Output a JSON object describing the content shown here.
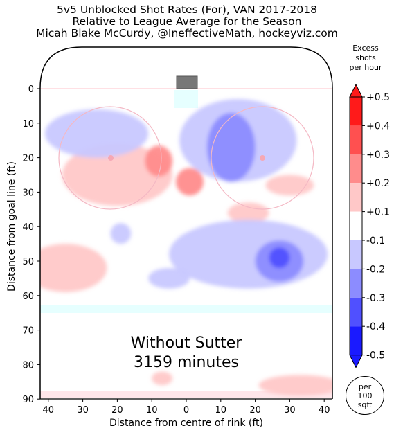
{
  "title": {
    "line1": "5v5 Unblocked Shot Rates (For), VAN 2017-2018",
    "line2": "Relative to League Average for the Season",
    "line3": "Micah Blake McCurdy, @IneffectiveMath, hockeyviz.com"
  },
  "annotation": {
    "line1": "Without Sutter",
    "line2": "3159 minutes"
  },
  "colorbar": {
    "label_line1": "Excess",
    "label_line2": "shots",
    "label_line3": "per hour",
    "ticks": [
      "+0.5",
      "+0.4",
      "+0.3",
      "+0.2",
      "+0.1",
      "-0.1",
      "-0.2",
      "-0.3",
      "-0.4",
      "-0.5"
    ],
    "colors": [
      "#ff1a1a",
      "#ff5050",
      "#ff8c8c",
      "#ffc8c8",
      "#ffffff",
      "#c8c8ff",
      "#8c8cff",
      "#5050ff",
      "#1a1aff"
    ]
  },
  "badge": {
    "line1": "per",
    "line2": "100",
    "line3": "sqft"
  },
  "chart_data": {
    "type": "heatmap",
    "title": "5v5 Unblocked Shot Rates (For), VAN 2017-2018",
    "subtitle": "Relative to League Average for the Season",
    "xlabel": "Distance from centre of rink (ft)",
    "ylabel": "Distance from goal line (ft)",
    "x_ticks": [
      40,
      30,
      20,
      10,
      0,
      10,
      20,
      30,
      40
    ],
    "y_ticks": [
      0,
      10,
      20,
      30,
      40,
      50,
      60,
      70,
      80,
      90
    ],
    "xlim": [
      -42.5,
      42.5
    ],
    "ylim": [
      0,
      90
    ],
    "colorbar_range": [
      -0.5,
      0.5
    ],
    "colorbar_unit": "Excess shots per hour",
    "regions": [
      {
        "x": -20,
        "y": 25,
        "rx": 16,
        "ry": 9,
        "value": 0.15
      },
      {
        "x": -8,
        "y": 21,
        "rx": 4,
        "ry": 4.5,
        "value": 0.25
      },
      {
        "x": 1,
        "y": 27,
        "rx": 4,
        "ry": 4,
        "value": 0.25
      },
      {
        "x": -35,
        "y": 52,
        "rx": 12,
        "ry": 7,
        "value": 0.15
      },
      {
        "x": 30,
        "y": 28,
        "rx": 7,
        "ry": 3,
        "value": 0.15
      },
      {
        "x": 18,
        "y": 36,
        "rx": 6,
        "ry": 3,
        "value": 0.15
      },
      {
        "x": 33,
        "y": 86,
        "rx": 12,
        "ry": 3,
        "value": 0.15
      },
      {
        "x": -7,
        "y": 84,
        "rx": 3,
        "ry": 2,
        "value": 0.15
      },
      {
        "x": -26,
        "y": 13,
        "rx": 15,
        "ry": 7,
        "value": -0.15
      },
      {
        "x": 15,
        "y": 15,
        "rx": 17,
        "ry": 12,
        "value": -0.15
      },
      {
        "x": 13,
        "y": 17,
        "rx": 7,
        "ry": 10,
        "value": -0.25
      },
      {
        "x": 18,
        "y": 48,
        "rx": 23,
        "ry": 10,
        "value": -0.15
      },
      {
        "x": 27,
        "y": 50,
        "rx": 7,
        "ry": 6,
        "value": -0.25
      },
      {
        "x": 27,
        "y": 49,
        "rx": 3,
        "ry": 3,
        "value": -0.35
      },
      {
        "x": -19,
        "y": 42,
        "rx": 3,
        "ry": 3,
        "value": -0.15
      },
      {
        "x": -5,
        "y": 55,
        "rx": 6,
        "ry": 3,
        "value": -0.15
      }
    ]
  }
}
